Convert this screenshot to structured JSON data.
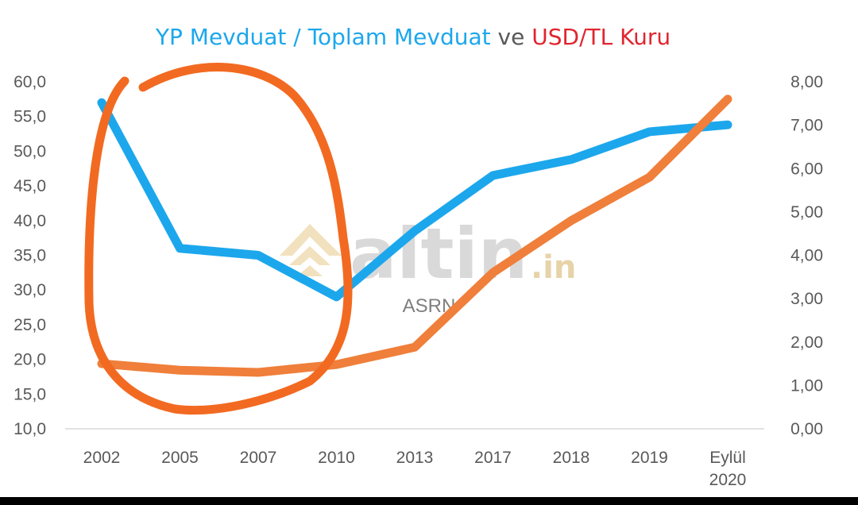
{
  "title_parts": {
    "first": "YP Mevduat / Toplam Mevduat",
    "middle": " ve ",
    "last": "USD/TL Kuru"
  },
  "watermark": {
    "text": "altin",
    "suffix": ".in",
    "caption": "ASRN"
  },
  "colors": {
    "series_left": "#1ca7ec",
    "series_right": "#ef7f3a",
    "title_left": "#1ca7ec",
    "title_mid": "#595959",
    "title_right": "#e1252f",
    "annotation": "#f26a21"
  },
  "chart_data": {
    "type": "line",
    "categories": [
      "2002",
      "2005",
      "2007",
      "2010",
      "2013",
      "2017",
      "2018",
      "2019",
      "Eylül 2020"
    ],
    "series": [
      {
        "name": "YP Mevduat / Toplam Mevduat",
        "axis": "left",
        "values": [
          57,
          36,
          35,
          29,
          38.5,
          46.5,
          48.8,
          52.8,
          53.8
        ]
      },
      {
        "name": "USD/TL Kuru",
        "axis": "right",
        "values": [
          1.5,
          1.35,
          1.3,
          1.48,
          1.88,
          3.6,
          4.8,
          5.8,
          7.6
        ]
      }
    ],
    "left_axis": {
      "range": [
        10,
        60
      ],
      "ticks": [
        "10,0",
        "15,0",
        "20,0",
        "25,0",
        "30,0",
        "35,0",
        "40,0",
        "45,0",
        "50,0",
        "55,0",
        "60,0"
      ]
    },
    "right_axis": {
      "range": [
        0,
        8
      ],
      "ticks": [
        "0,00",
        "1,00",
        "2,00",
        "3,00",
        "4,00",
        "5,00",
        "6,00",
        "7,00",
        "8,00"
      ]
    },
    "grid": false,
    "legend": "none"
  }
}
